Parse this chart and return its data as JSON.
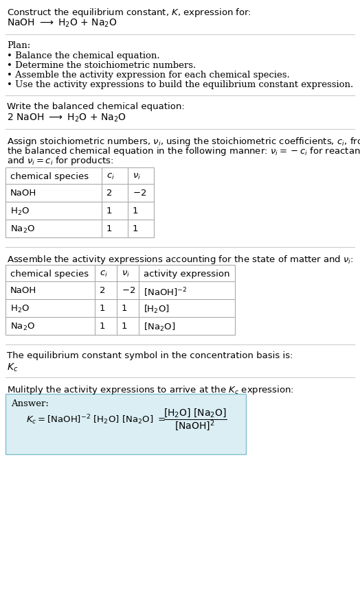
{
  "title_line1": "Construct the equilibrium constant, $K$, expression for:",
  "title_line2": "NaOH $\\longrightarrow$ H$_2$O + Na$_2$O",
  "plan_header": "Plan:",
  "plan_bullets": [
    "• Balance the chemical equation.",
    "• Determine the stoichiometric numbers.",
    "• Assemble the activity expression for each chemical species.",
    "• Use the activity expressions to build the equilibrium constant expression."
  ],
  "balanced_eq_header": "Write the balanced chemical equation:",
  "balanced_eq": "2 NaOH $\\longrightarrow$ H$_2$O + Na$_2$O",
  "stoich_intro_lines": [
    "Assign stoichiometric numbers, $\\nu_i$, using the stoichiometric coefficients, $c_i$, from",
    "the balanced chemical equation in the following manner: $\\nu_i = -c_i$ for reactants",
    "and $\\nu_i = c_i$ for products:"
  ],
  "table1_headers": [
    "chemical species",
    "$c_i$",
    "$\\nu_i$"
  ],
  "table1_rows": [
    [
      "NaOH",
      "2",
      "$-2$"
    ],
    [
      "H$_2$O",
      "1",
      "1"
    ],
    [
      "Na$_2$O",
      "1",
      "1"
    ]
  ],
  "assemble_intro": "Assemble the activity expressions accounting for the state of matter and $\\nu_i$:",
  "table2_headers": [
    "chemical species",
    "$c_i$",
    "$\\nu_i$",
    "activity expression"
  ],
  "table2_rows": [
    [
      "NaOH",
      "2",
      "$-2$",
      "[NaOH]$^{-2}$"
    ],
    [
      "H$_2$O",
      "1",
      "1",
      "[H$_2$O]"
    ],
    [
      "Na$_2$O",
      "1",
      "1",
      "[Na$_2$O]"
    ]
  ],
  "Kc_text": "The equilibrium constant symbol in the concentration basis is:",
  "Kc_symbol": "$K_c$",
  "multiply_text": "Mulitply the activity expressions to arrive at the $K_c$ expression:",
  "answer_label": "Answer:",
  "answer_box_color": "#daeef3",
  "answer_box_border": "#7fbfcf",
  "bg_color": "#ffffff",
  "text_color": "#000000",
  "table_border_color": "#aaaaaa",
  "separator_color": "#cccccc",
  "font_size": 9.5
}
